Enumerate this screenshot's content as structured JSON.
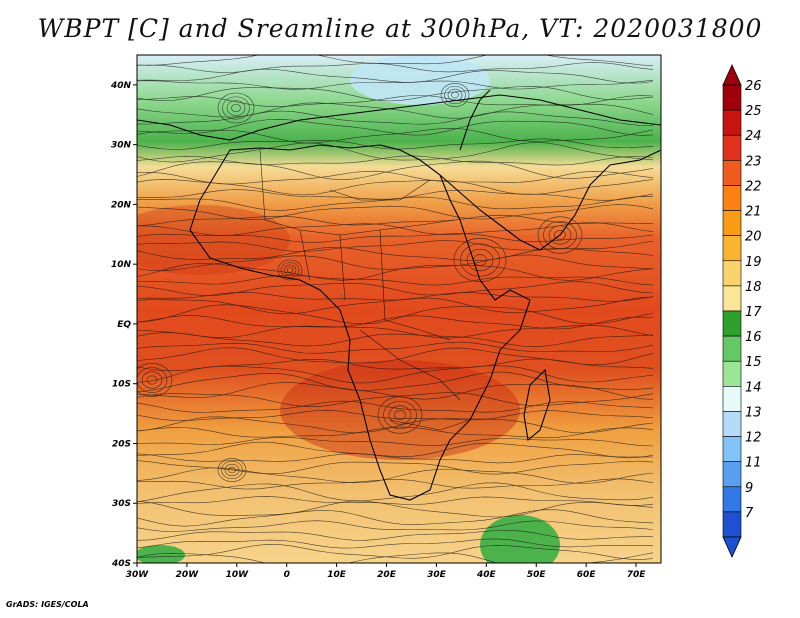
{
  "title": "WBPT [C] and Sreamline at 300hPa, VT: 2020031800",
  "footer": "GrADS: IGES/COLA",
  "map": {
    "lon_labels": [
      "30W",
      "20W",
      "10W",
      "0",
      "10E",
      "20E",
      "30E",
      "40E",
      "50E",
      "60E",
      "70E"
    ],
    "lon_values": [
      -30,
      -20,
      -10,
      0,
      10,
      20,
      30,
      40,
      50,
      60,
      70
    ],
    "lat_labels": [
      "40N",
      "30N",
      "20N",
      "10N",
      "EQ",
      "10S",
      "20S",
      "30S",
      "40S"
    ],
    "lat_values": [
      40,
      30,
      20,
      10,
      0,
      -10,
      -20,
      -30,
      -40
    ],
    "lon_range": [
      -30,
      75
    ],
    "lat_range": [
      -40,
      45
    ]
  },
  "colorbar": {
    "labels": [
      "26",
      "25",
      "24",
      "23",
      "22",
      "21",
      "20",
      "19",
      "18",
      "17",
      "16",
      "15",
      "14",
      "13",
      "12",
      "11",
      "9",
      "7"
    ],
    "colors": [
      "#a0000a",
      "#c8140f",
      "#e1321e",
      "#f05a1e",
      "#fa8214",
      "#fa9b14",
      "#fab432",
      "#fad26e",
      "#fae696",
      "#2ea02e",
      "#64c864",
      "#9be696",
      "#e6fafa",
      "#b4dcfa",
      "#82c3fa",
      "#5aa0f0",
      "#3278e6",
      "#1e50d2"
    ]
  }
}
